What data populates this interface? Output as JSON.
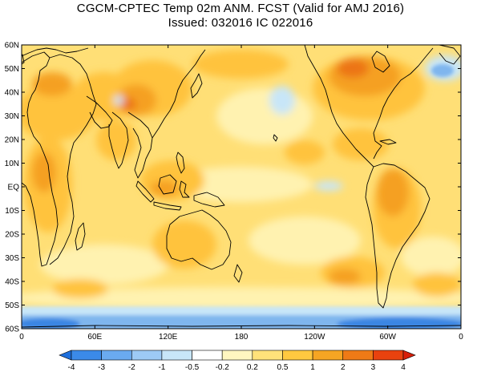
{
  "title_line1": "CGCM-CPTEC Temp 02m ANM. FCST  (Valid for AMJ 2016)",
  "title_line2": "Issued:  032016 IC 022016",
  "lat_labels": [
    "60N",
    "50N",
    "40N",
    "30N",
    "20N",
    "10N",
    "EQ",
    "10S",
    "20S",
    "30S",
    "40S",
    "50S",
    "60S"
  ],
  "lon_labels": [
    "0",
    "60E",
    "120E",
    "180",
    "120W",
    "60W",
    "0"
  ],
  "colorbar": {
    "labels": [
      "-4",
      "-3",
      "-2",
      "-1",
      "-0.5",
      "-0.2",
      "0.2",
      "0.5",
      "1",
      "2",
      "3",
      "4"
    ],
    "colors": [
      "#1e6fdc",
      "#3b8ae8",
      "#6aaaf0",
      "#9dcaf5",
      "#c8e6f8",
      "#ffffff",
      "#fff6c0",
      "#ffe27a",
      "#ffc940",
      "#f5a523",
      "#ef7a16",
      "#e9420e",
      "#d81f08"
    ]
  },
  "map_colors": {
    "base": "#ffdf76",
    "light": "#fff2b0",
    "warm": "#ffc33d",
    "warmer": "#f5a020",
    "hot": "#ec7515",
    "cool": "#c8e6f8",
    "cold": "#7fb6ee",
    "coldest": "#3a86e3",
    "coast": "#000000"
  }
}
